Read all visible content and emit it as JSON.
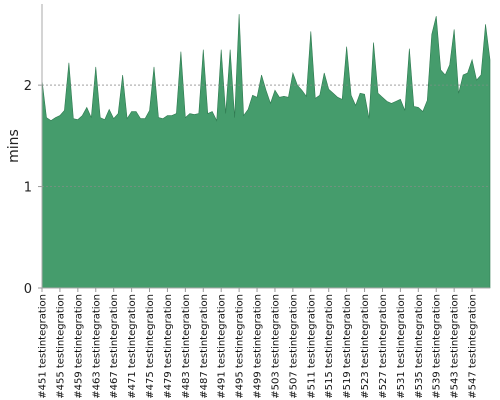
{
  "chart_data": {
    "type": "area",
    "title": "",
    "xlabel": "",
    "ylabel": "mins",
    "ylim": [
      0,
      2.8
    ],
    "yticks": [
      0,
      1,
      2
    ],
    "grid": true,
    "fill_color": "#459c6c",
    "line_color": "#2e7a50",
    "x_tick_labels": [
      "#451 testintegration",
      "#455 testintegration",
      "#459 testintegration",
      "#463 testintegration",
      "#467 testintegration",
      "#471 testintegration",
      "#475 testintegration",
      "#479 testintegration",
      "#483 testintegration",
      "#487 testintegration",
      "#491 testintegration",
      "#495 testintegration",
      "#499 testintegration",
      "#503 testintegration",
      "#507 testintegration",
      "#511 testintegration",
      "#515 testintegration",
      "#519 testintegration",
      "#523 testintegration",
      "#527 testintegration",
      "#531 testintegration",
      "#535 testintegration",
      "#539 testintegration",
      "#543 testintegration",
      "#547 testintegration"
    ],
    "x_start": 451,
    "values": [
      2.05,
      1.68,
      1.65,
      1.68,
      1.7,
      1.75,
      2.22,
      1.67,
      1.66,
      1.7,
      1.78,
      1.68,
      2.18,
      1.68,
      1.66,
      1.76,
      1.67,
      1.72,
      2.1,
      1.67,
      1.74,
      1.74,
      1.67,
      1.67,
      1.75,
      2.18,
      1.68,
      1.67,
      1.7,
      1.7,
      1.72,
      2.33,
      1.68,
      1.72,
      1.71,
      1.72,
      2.35,
      1.72,
      1.74,
      1.65,
      2.35,
      1.72,
      2.35,
      1.68,
      2.7,
      1.7,
      1.76,
      1.9,
      1.88,
      2.1,
      1.95,
      1.82,
      1.95,
      1.88,
      1.89,
      1.88,
      2.12,
      2.0,
      1.95,
      1.89,
      2.53,
      1.87,
      1.9,
      2.12,
      1.96,
      1.92,
      1.88,
      1.86,
      2.38,
      1.9,
      1.8,
      1.92,
      1.91,
      1.67,
      2.42,
      1.92,
      1.88,
      1.84,
      1.82,
      1.84,
      1.86,
      1.75,
      2.36,
      1.79,
      1.78,
      1.74,
      1.85,
      2.5,
      2.68,
      2.15,
      2.1,
      2.2,
      2.55,
      1.92,
      2.1,
      2.12,
      2.25,
      2.05,
      2.1,
      2.6,
      2.25
    ]
  }
}
